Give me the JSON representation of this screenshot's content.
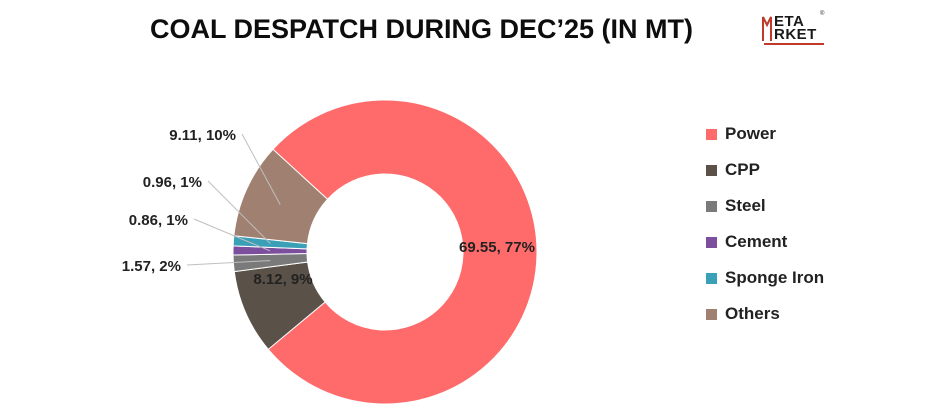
{
  "title": "COAL DESPATCH DURING DEC’25 (IN  MT)",
  "logo": {
    "line1": "ETA",
    "line2": "RKET",
    "reg": "®"
  },
  "chart_data": {
    "type": "pie",
    "donut": true,
    "title": "COAL DESPATCH DURING DEC’25 (IN  MT)",
    "legend_position": "right",
    "slices": [
      {
        "name": "Power",
        "value": 69.55,
        "label": "69.55, 77%",
        "color": "#ff6b6b"
      },
      {
        "name": "CPP",
        "value": 8.12,
        "label": "8.12, 9%",
        "color": "#5a5148"
      },
      {
        "name": "Steel",
        "value": 1.57,
        "label": "1.57, 2%",
        "color": "#7a7a7a"
      },
      {
        "name": "Cement",
        "value": 0.86,
        "label": "0.86, 1%",
        "color": "#7b4f9d"
      },
      {
        "name": "Sponge Iron",
        "value": 0.96,
        "label": "0.96, 1%",
        "color": "#3aa0b8"
      },
      {
        "name": "Others",
        "value": 9.11,
        "label": "9.11, 10%",
        "color": "#a08070"
      }
    ]
  }
}
